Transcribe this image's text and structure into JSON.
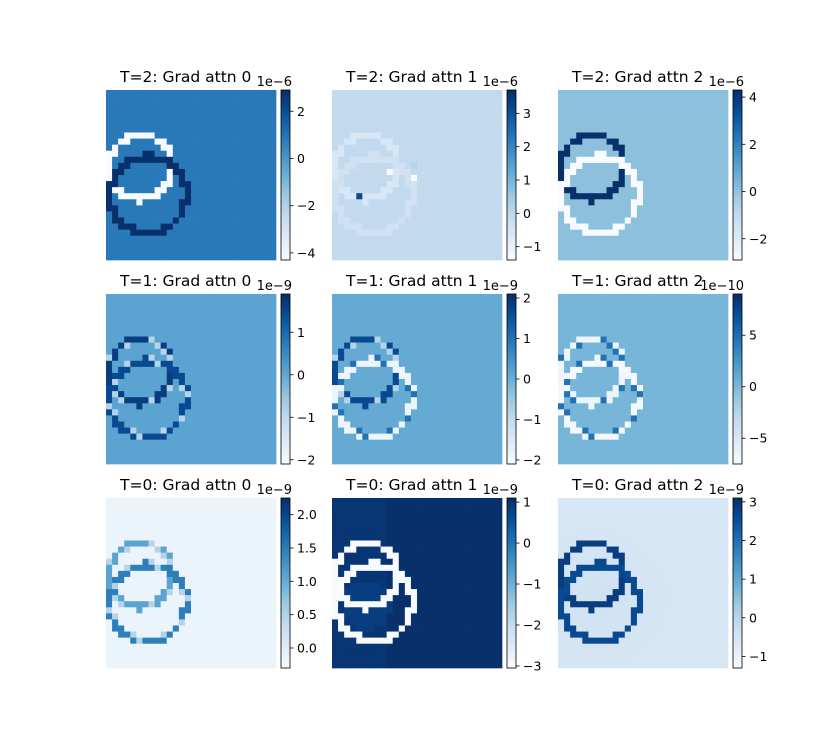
{
  "figure": {
    "panels": [
      {
        "title": "T=2: Grad attn 0",
        "exponent_label": "1e−6",
        "colorbar": {
          "ticks": [
            -4,
            -2,
            0,
            2
          ],
          "tick_labels": [
            "−4",
            "−2",
            "0",
            "2"
          ],
          "range": [
            -4.3,
            2.9
          ]
        },
        "background_level": 0.72
      },
      {
        "title": "T=2: Grad attn 1",
        "exponent_label": "1e−6",
        "colorbar": {
          "ticks": [
            -1,
            0,
            1,
            2,
            3
          ],
          "tick_labels": [
            "−1",
            "0",
            "1",
            "2",
            "3"
          ],
          "range": [
            -1.4,
            3.7
          ]
        },
        "background_level": 0.26
      },
      {
        "title": "T=2: Grad attn 2",
        "exponent_label": "1e−6",
        "colorbar": {
          "ticks": [
            -2,
            0,
            2,
            4
          ],
          "tick_labels": [
            "−2",
            "0",
            "2",
            "4"
          ],
          "range": [
            -2.9,
            4.3
          ]
        },
        "background_level": 0.42
      },
      {
        "title": "T=1: Grad attn 0",
        "exponent_label": "1e−9",
        "colorbar": {
          "ticks": [
            -2,
            -1,
            0,
            1
          ],
          "tick_labels": [
            "−2",
            "−1",
            "0",
            "1"
          ],
          "range": [
            -2.1,
            1.9
          ]
        },
        "background_level": 0.55
      },
      {
        "title": "T=1: Grad attn 1",
        "exponent_label": "1e−9",
        "colorbar": {
          "ticks": [
            -2,
            -1,
            0,
            1,
            2
          ],
          "tick_labels": [
            "−2",
            "−1",
            "0",
            "1",
            "2"
          ],
          "range": [
            -2.1,
            2.1
          ]
        },
        "background_level": 0.52
      },
      {
        "title": "T=1: Grad attn 2",
        "exponent_label": "1e−10",
        "colorbar": {
          "ticks": [
            -5,
            0,
            5
          ],
          "tick_labels": [
            "−5",
            "0",
            "5"
          ],
          "range": [
            -7.5,
            9.0
          ]
        },
        "background_level": 0.47
      },
      {
        "title": "T=0: Grad attn 0",
        "exponent_label": "1e−9",
        "colorbar": {
          "ticks": [
            0.0,
            0.5,
            1.0,
            1.5,
            2.0
          ],
          "tick_labels": [
            "0.0",
            "0.5",
            "1.0",
            "1.5",
            "2.0"
          ],
          "range": [
            -0.3,
            2.25
          ]
        },
        "background_level": 0.06
      },
      {
        "title": "T=0: Grad attn 1",
        "exponent_label": "1e−9",
        "colorbar": {
          "ticks": [
            -3,
            -2,
            -1,
            0,
            1
          ],
          "tick_labels": [
            "−3",
            "−2",
            "−1",
            "0",
            "1"
          ],
          "range": [
            -3.05,
            1.1
          ]
        },
        "background_level": 1.0
      },
      {
        "title": "T=0: Grad attn 2",
        "exponent_label": "1e−9",
        "colorbar": {
          "ticks": [
            -1,
            0,
            1,
            2,
            3
          ],
          "tick_labels": [
            "−1",
            "0",
            "1",
            "2",
            "3"
          ],
          "range": [
            -1.3,
            3.1
          ]
        },
        "background_level": 0.16
      }
    ]
  },
  "chart_data": {
    "type": "heatmap",
    "colormap": "Blues",
    "grid": false,
    "layout": "3x3",
    "cmap_colors": [
      "#f7fbff",
      "#deebf7",
      "#c6dbef",
      "#9ecae1",
      "#6baed6",
      "#4292c6",
      "#2171b5",
      "#08519c",
      "#08306b"
    ],
    "panels": [
      {
        "title": "T=2: Grad attn 0",
        "scale": "1e-6",
        "colorbar_ticks": [
          -4,
          -2,
          0,
          2
        ],
        "colorbar_range": [
          -4.3,
          2.9
        ]
      },
      {
        "title": "T=2: Grad attn 1",
        "scale": "1e-6",
        "colorbar_ticks": [
          -1,
          0,
          1,
          2,
          3
        ],
        "colorbar_range": [
          -1.4,
          3.7
        ]
      },
      {
        "title": "T=2: Grad attn 2",
        "scale": "1e-6",
        "colorbar_ticks": [
          -2,
          0,
          2,
          4
        ],
        "colorbar_range": [
          -2.9,
          4.3
        ]
      },
      {
        "title": "T=1: Grad attn 0",
        "scale": "1e-9",
        "colorbar_ticks": [
          -2,
          -1,
          0,
          1
        ],
        "colorbar_range": [
          -2.1,
          1.9
        ]
      },
      {
        "title": "T=1: Grad attn 1",
        "scale": "1e-9",
        "colorbar_ticks": [
          -2,
          -1,
          0,
          1,
          2
        ],
        "colorbar_range": [
          -2.1,
          2.1
        ]
      },
      {
        "title": "T=1: Grad attn 2",
        "scale": "1e-10",
        "colorbar_ticks": [
          -5,
          0,
          5
        ],
        "colorbar_range": [
          -7.5,
          9.0
        ]
      },
      {
        "title": "T=0: Grad attn 0",
        "scale": "1e-9",
        "colorbar_ticks": [
          0.0,
          0.5,
          1.0,
          1.5,
          2.0
        ],
        "colorbar_range": [
          -0.3,
          2.25
        ]
      },
      {
        "title": "T=0: Grad attn 1",
        "scale": "1e-9",
        "colorbar_ticks": [
          -3,
          -2,
          -1,
          0,
          1
        ],
        "colorbar_range": [
          -3.05,
          1.1
        ]
      },
      {
        "title": "T=0: Grad attn 2",
        "scale": "1e-9",
        "colorbar_ticks": [
          -1,
          0,
          1,
          2,
          3
        ],
        "colorbar_range": [
          -1.3,
          3.1
        ]
      }
    ]
  }
}
